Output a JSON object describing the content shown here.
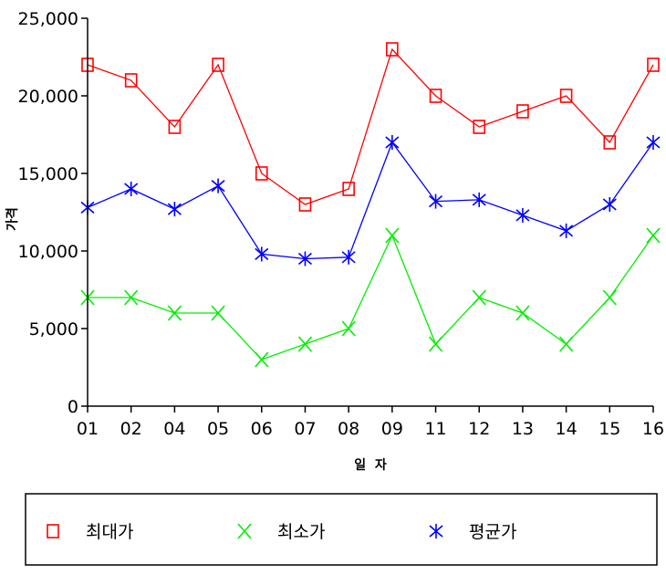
{
  "chart_data": {
    "type": "line",
    "title": "",
    "xlabel": "일  자",
    "ylabel": "가격",
    "categories": [
      "01",
      "02",
      "04",
      "05",
      "06",
      "07",
      "08",
      "09",
      "11",
      "12",
      "13",
      "14",
      "15",
      "16"
    ],
    "ylim": [
      0,
      25000
    ],
    "yticks": [
      "0",
      "5,000",
      "10,000",
      "15,000",
      "20,000",
      "25,000"
    ],
    "grid": false,
    "legend_position": "bottom",
    "series": [
      {
        "name": "최대가",
        "color": "#ff0000",
        "marker": "square",
        "values": [
          22000,
          21000,
          18000,
          22000,
          15000,
          13000,
          14000,
          23000,
          20000,
          18000,
          19000,
          20000,
          17000,
          22000
        ]
      },
      {
        "name": "최소가",
        "color": "#00ee00",
        "marker": "x",
        "values": [
          7000,
          7000,
          6000,
          6000,
          3000,
          4000,
          5000,
          11000,
          4000,
          7000,
          6000,
          4000,
          7000,
          11000
        ]
      },
      {
        "name": "평균가",
        "color": "#0000ff",
        "marker": "asterisk",
        "values": [
          12800,
          14000,
          12700,
          14200,
          9800,
          9500,
          9600,
          17000,
          13200,
          13300,
          12300,
          11300,
          13000,
          17000
        ]
      }
    ]
  }
}
